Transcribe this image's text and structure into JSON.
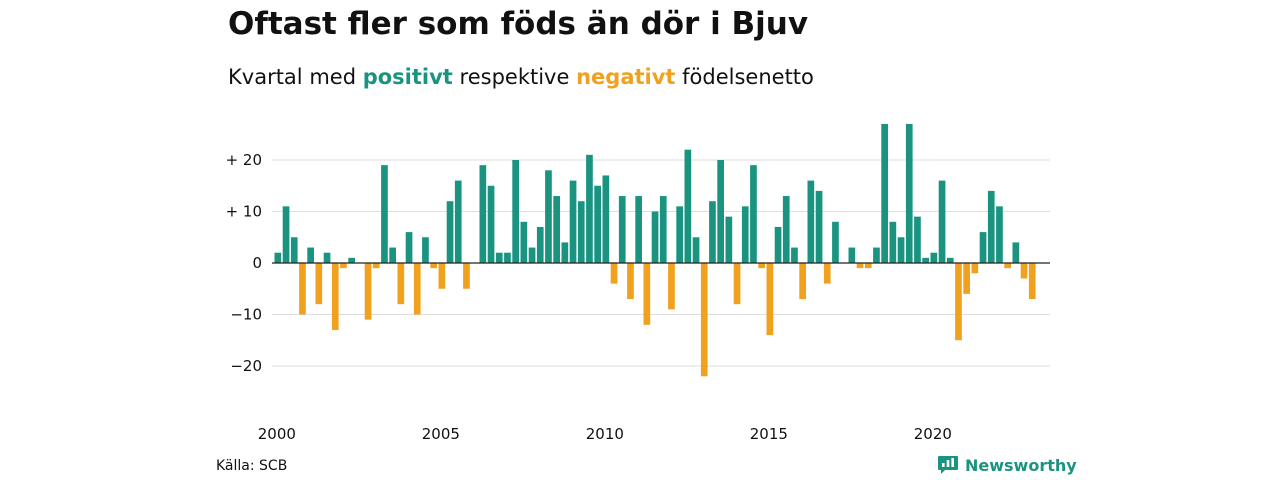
{
  "title": "Oftast fler som föds än dör i Bjuv",
  "subtitle": {
    "prefix": "Kvartal med",
    "positive_word": "positivt",
    "middle": "respektive",
    "negative_word": "negativt",
    "suffix": "födelsenetto"
  },
  "source": "Källa: SCB",
  "brand": {
    "name": "Newsworthy",
    "icon": "newsworthy-logo-icon"
  },
  "colors": {
    "positive": "#1a9480",
    "negative": "#f0a11e",
    "grid": "#dddddd",
    "axis": "#222222"
  },
  "chart_data": {
    "type": "bar",
    "x_start_year": 2000,
    "x_start_quarter": 1,
    "quarters_per_year": 4,
    "y_tick_values": [
      20,
      10,
      0,
      -10,
      -20
    ],
    "y_tick_labels": [
      "+ 20",
      "+ 10",
      "0",
      "−10",
      "−20"
    ],
    "x_tick_labels": [
      "2000",
      "2005",
      "2010",
      "2015",
      "2020"
    ],
    "ylim": [
      -27,
      27
    ],
    "grid": true,
    "values": [
      2,
      11,
      5,
      -10,
      3,
      -8,
      2,
      -13,
      -1,
      1,
      0,
      -11,
      -1,
      19,
      3,
      -8,
      6,
      -10,
      5,
      -1,
      -5,
      12,
      16,
      -5,
      0,
      19,
      15,
      2,
      2,
      20,
      8,
      3,
      7,
      18,
      13,
      4,
      16,
      12,
      21,
      15,
      17,
      -4,
      13,
      -7,
      13,
      -12,
      10,
      13,
      -9,
      11,
      22,
      5,
      -22,
      12,
      20,
      9,
      -8,
      11,
      19,
      -1,
      -14,
      7,
      13,
      3,
      -7,
      16,
      14,
      -4,
      8,
      0,
      3,
      -1,
      -1,
      3,
      27,
      8,
      5,
      27,
      9,
      1,
      2,
      16,
      1,
      -15,
      -6,
      -2,
      6,
      14,
      11,
      -1,
      4,
      -3,
      -7
    ]
  }
}
